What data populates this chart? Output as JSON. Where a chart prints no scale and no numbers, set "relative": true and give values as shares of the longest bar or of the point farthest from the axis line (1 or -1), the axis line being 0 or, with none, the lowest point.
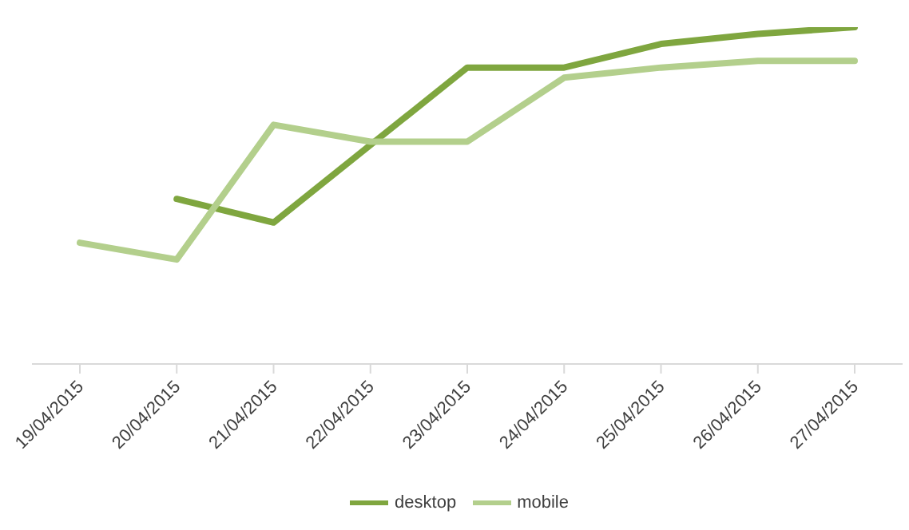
{
  "chart_data": {
    "type": "line",
    "relative": true,
    "categories": [
      "19/04/2015",
      "20/04/2015",
      "21/04/2015",
      "22/04/2015",
      "23/04/2015",
      "24/04/2015",
      "25/04/2015",
      "26/04/2015",
      "27/04/2015"
    ],
    "series": [
      {
        "name": "desktop",
        "color": "#7fa63f",
        "values": [
          null,
          0.49,
          0.42,
          0.65,
          0.88,
          0.88,
          0.95,
          0.98,
          1
        ]
      },
      {
        "name": "mobile",
        "color": "#b3cf8c",
        "values": [
          0.36,
          0.31,
          0.71,
          0.66,
          0.66,
          0.85,
          0.88,
          0.9,
          0.9
        ]
      }
    ],
    "legend": "bottom",
    "grid": false,
    "marker": "none",
    "line_style": "solid"
  }
}
